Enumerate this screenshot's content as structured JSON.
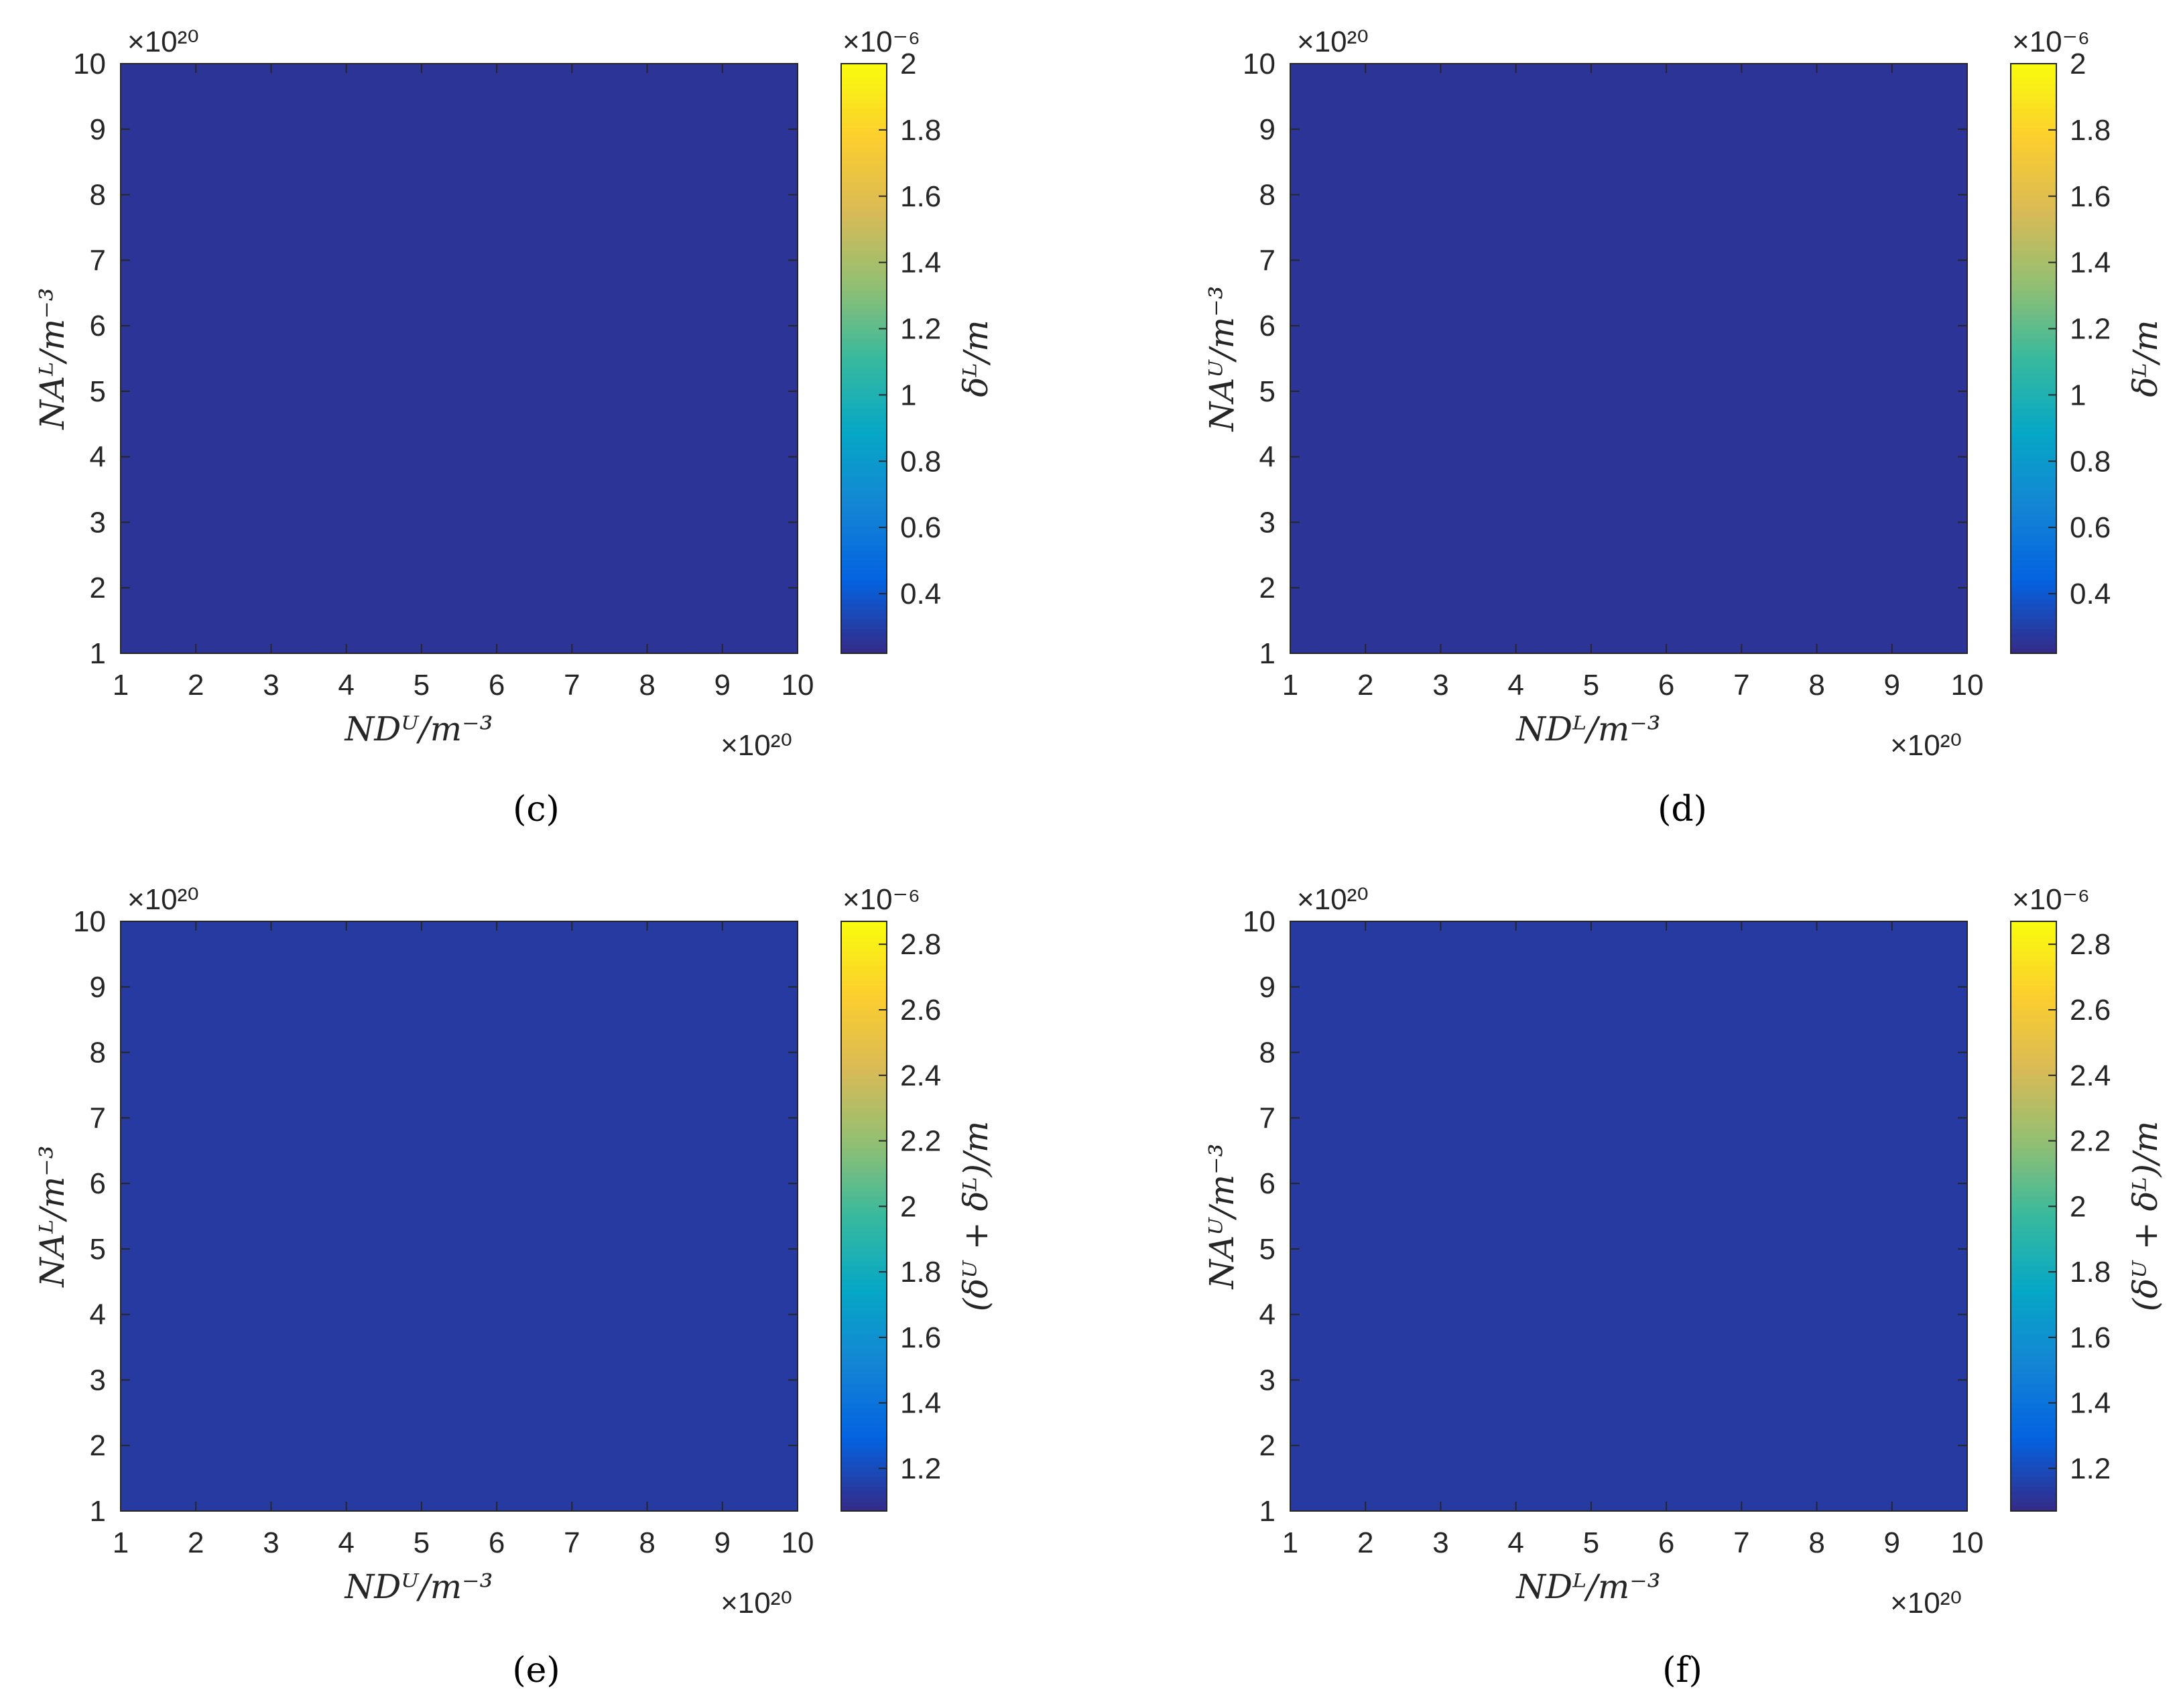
{
  "chart_data": [
    {
      "type": "contourf",
      "panel_label": "(c)",
      "x": {
        "label": "N_D^U/m^-3",
        "ticks": [
          1,
          2,
          3,
          4,
          5,
          6,
          7,
          8,
          9,
          10
        ],
        "exponent": "×10²⁰",
        "range": [
          1,
          10
        ]
      },
      "y": {
        "label": "N_A^L/m^-3",
        "ticks": [
          1,
          2,
          3,
          4,
          5,
          6,
          7,
          8,
          9,
          10
        ],
        "exponent": "×10²⁰",
        "range": [
          1,
          10
        ]
      },
      "colorbar": {
        "label": "δ^L/m",
        "ticks": [
          "0.4",
          "0.6",
          "0.8",
          "1",
          "1.2",
          "1.4",
          "1.6",
          "1.8",
          "2"
        ],
        "exponent": "×10⁻⁶",
        "range": [
          0.22,
          2.0
        ]
      },
      "model": "deltaL_vs_NDU"
    },
    {
      "type": "contourf",
      "panel_label": "(d)",
      "x": {
        "label": "N_D^L/m^-3",
        "ticks": [
          1,
          2,
          3,
          4,
          5,
          6,
          7,
          8,
          9,
          10
        ],
        "exponent": "×10²⁰",
        "range": [
          1,
          10
        ]
      },
      "y": {
        "label": "N_A^U/m^-3",
        "ticks": [
          1,
          2,
          3,
          4,
          5,
          6,
          7,
          8,
          9,
          10
        ],
        "exponent": "×10²⁰",
        "range": [
          1,
          10
        ]
      },
      "colorbar": {
        "label": "δ^L/m",
        "ticks": [
          "0.4",
          "0.6",
          "0.8",
          "1",
          "1.2",
          "1.4",
          "1.6",
          "1.8",
          "2"
        ],
        "exponent": "×10⁻⁶",
        "range": [
          0.22,
          2.0
        ]
      },
      "model": "deltaL_vs_NDL"
    },
    {
      "type": "contourf",
      "panel_label": "(e)",
      "x": {
        "label": "N_D^U/m^-3",
        "ticks": [
          1,
          2,
          3,
          4,
          5,
          6,
          7,
          8,
          9,
          10
        ],
        "exponent": "×10²⁰",
        "range": [
          1,
          10
        ]
      },
      "y": {
        "label": "N_A^L/m^-3",
        "ticks": [
          1,
          2,
          3,
          4,
          5,
          6,
          7,
          8,
          9,
          10
        ],
        "exponent": "×10²⁰",
        "range": [
          1,
          10
        ]
      },
      "colorbar": {
        "label": "(δ^U + δ^L)/m",
        "ticks": [
          "1.2",
          "1.4",
          "1.6",
          "1.8",
          "2",
          "2.2",
          "2.4",
          "2.6",
          "2.8"
        ],
        "exponent": "×10⁻⁶",
        "range": [
          1.07,
          2.87
        ]
      },
      "model": "deltaSum"
    },
    {
      "type": "contourf",
      "panel_label": "(f)",
      "x": {
        "label": "N_D^L/m^-3",
        "ticks": [
          1,
          2,
          3,
          4,
          5,
          6,
          7,
          8,
          9,
          10
        ],
        "exponent": "×10²⁰",
        "range": [
          1,
          10
        ]
      },
      "y": {
        "label": "N_A^U/m^-3",
        "ticks": [
          1,
          2,
          3,
          4,
          5,
          6,
          7,
          8,
          9,
          10
        ],
        "exponent": "×10²⁰",
        "range": [
          1,
          10
        ]
      },
      "colorbar": {
        "label": "(δ^U + δ^L)/m",
        "ticks": [
          "1.2",
          "1.4",
          "1.6",
          "1.8",
          "2",
          "2.2",
          "2.4",
          "2.6",
          "2.8"
        ],
        "exponent": "×10⁻⁶",
        "range": [
          1.07,
          2.87
        ]
      },
      "model": "deltaSum"
    }
  ],
  "colormap": [
    "#352a87",
    "#0363e1",
    "#1485d4",
    "#06a7c6",
    "#38b99e",
    "#92bf73",
    "#d9ba56",
    "#fcce2e",
    "#f9fb0e"
  ],
  "line_color": "#000000"
}
